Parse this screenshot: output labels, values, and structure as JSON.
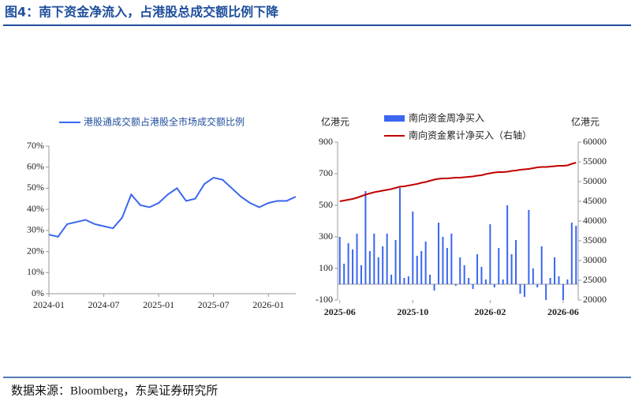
{
  "header": {
    "title": "图4：南下资金净流入，占港股总成交额比例下降"
  },
  "chart_data": [
    {
      "type": "line",
      "series": [
        {
          "name": "港股通成交额占港股全市场成交额比例",
          "color": "#3a66f0",
          "values": [
            28,
            27,
            33,
            34,
            35,
            33,
            32,
            31,
            36,
            47,
            42,
            41,
            43,
            47,
            50,
            44,
            45,
            52,
            55,
            54,
            50,
            46,
            43,
            41,
            43,
            44,
            44,
            46
          ]
        }
      ],
      "x": [
        "2024-01",
        "2024-02",
        "2024-03",
        "2024-04",
        "2024-05",
        "2024-06",
        "2024-07",
        "2024-08",
        "2024-09",
        "2024-10",
        "2024-11",
        "2024-12",
        "2025-01",
        "2025-02",
        "2025-03",
        "2025-04",
        "2025-05",
        "2025-06",
        "2025-07",
        "2025-08",
        "2025-09",
        "2025-10",
        "2025-11",
        "2025-12",
        "2026-01",
        "2026-02",
        "2026-03",
        "2026-04"
      ],
      "xlim": [
        "2024-01",
        "2026-04"
      ],
      "xticks": [
        "2024-01",
        "2024-07",
        "2025-01",
        "2025-07",
        "2026-01"
      ],
      "ylim": [
        0,
        70
      ],
      "yticks": [
        {
          "value": 0,
          "label": "0%"
        },
        {
          "value": 10,
          "label": "10%"
        },
        {
          "value": 20,
          "label": "20%"
        },
        {
          "value": 30,
          "label": "30%"
        },
        {
          "value": 40,
          "label": "40%"
        },
        {
          "value": 50,
          "label": "50%"
        },
        {
          "value": 60,
          "label": "60%"
        },
        {
          "value": 70,
          "label": "70%"
        }
      ]
    },
    {
      "type": "combo",
      "y_label": "亿港元",
      "y2_label": "亿港元",
      "categories": [
        "2025-06",
        null,
        null,
        null,
        null,
        null,
        null,
        null,
        null,
        null,
        null,
        null,
        null,
        null,
        null,
        null,
        null,
        "2025-10",
        null,
        null,
        null,
        null,
        null,
        null,
        null,
        null,
        null,
        null,
        null,
        null,
        null,
        null,
        null,
        null,
        null,
        "2026-02",
        null,
        null,
        null,
        null,
        null,
        null,
        null,
        null,
        null,
        null,
        null,
        null,
        null,
        null,
        null,
        null,
        "2026-06",
        null,
        null,
        null
      ],
      "series": [
        {
          "name": "南向资金周净买入",
          "color": "#3a66f0",
          "type": "bar",
          "values": [
            300,
            130,
            260,
            220,
            320,
            120,
            590,
            210,
            320,
            170,
            240,
            320,
            60,
            280,
            610,
            40,
            50,
            460,
            180,
            210,
            270,
            60,
            -40,
            390,
            300,
            230,
            320,
            -10,
            170,
            120,
            40,
            -30,
            190,
            110,
            30,
            380,
            -20,
            230,
            30,
            500,
            190,
            280,
            -60,
            -80,
            470,
            100,
            -20,
            240,
            -100,
            40,
            170,
            50,
            -100,
            30,
            390,
            370
          ]
        },
        {
          "name": "南向资金累计净买入（右轴）",
          "color": "#c00000",
          "type": "line",
          "axis": "y2",
          "values": [
            45000,
            45200,
            45400,
            45600,
            45900,
            46300,
            46700,
            47000,
            47300,
            47500,
            47700,
            47900,
            48100,
            48400,
            48700,
            48800,
            49000,
            49200,
            49400,
            49700,
            49900,
            50200,
            50500,
            50700,
            50800,
            50800,
            50900,
            51000,
            51000,
            51100,
            51200,
            51300,
            51500,
            51600,
            51900,
            52100,
            52300,
            52400,
            52400,
            52500,
            52700,
            52800,
            53000,
            53100,
            53200,
            53400,
            53600,
            53700,
            53700,
            53800,
            53900,
            54000,
            54000,
            54100,
            54500,
            54800
          ]
        }
      ],
      "ylim": [
        -100,
        900
      ],
      "yticks": [
        -100,
        100,
        300,
        500,
        700,
        900
      ],
      "y2lim": [
        20000,
        60000
      ],
      "y2ticks": [
        20000,
        25000,
        30000,
        35000,
        40000,
        45000,
        50000,
        55000,
        60000
      ]
    }
  ],
  "footer": {
    "source": "数据来源：Bloomberg，东吴证券研究所"
  }
}
